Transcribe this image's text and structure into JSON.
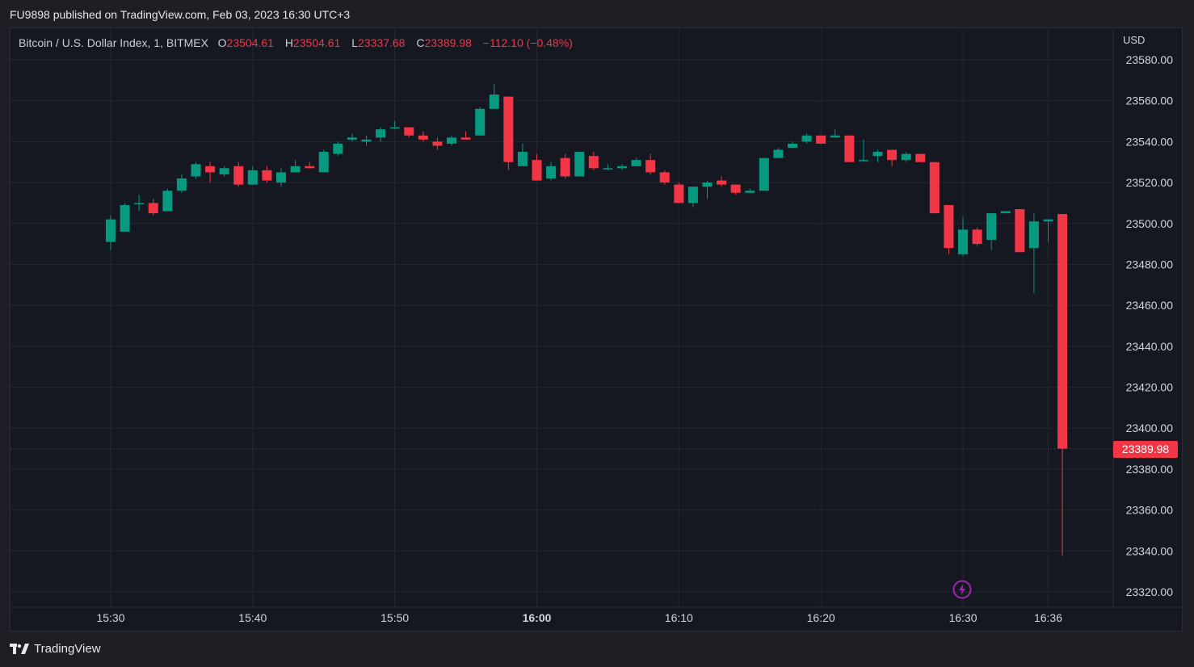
{
  "header": {
    "published_text": "FU9898 published on TradingView.com, Feb 03, 2023 16:30 UTC+3"
  },
  "legend": {
    "symbol_text": "Bitcoin / U.S. Dollar Index, 1, BITMEX",
    "o_label": "O",
    "o_value": "23504.61",
    "h_label": "H",
    "h_value": "23504.61",
    "l_label": "L",
    "l_value": "23337.68",
    "c_label": "C",
    "c_value": "23389.98",
    "change": "−112.10 (−0.48%)"
  },
  "axis": {
    "currency": "USD",
    "last_price_label": "23389.98"
  },
  "footer": {
    "brand": "TradingView"
  },
  "colors": {
    "up": "#089981",
    "down": "#f23645",
    "grid": "#242733",
    "background": "#161821"
  },
  "icons": {
    "flash": "lightning-bolt-icon",
    "logo": "tradingview-logo-icon"
  },
  "chart_data": {
    "type": "candlestick",
    "title": "Bitcoin / U.S. Dollar Index, 1, BITMEX",
    "ylabel": "USD",
    "ylim": [
      23315,
      23587
    ],
    "y_ticks": [
      "23580.00",
      "23560.00",
      "23540.00",
      "23520.00",
      "23500.00",
      "23480.00",
      "23460.00",
      "23440.00",
      "23420.00",
      "23400.00",
      "23380.00",
      "23360.00",
      "23340.00",
      "23320.00"
    ],
    "x_ticks": [
      {
        "label": "15:30",
        "minute": 923
      },
      {
        "label": "15:40",
        "minute": 933
      },
      {
        "label": "15:50",
        "minute": 943
      },
      {
        "label": "16:00",
        "minute": 953,
        "bold": true
      },
      {
        "label": "16:10",
        "minute": 963
      },
      {
        "label": "16:20",
        "minute": 973
      },
      {
        "label": "16:30",
        "minute": 983
      },
      {
        "label": "16:36",
        "minute": 989
      }
    ],
    "grid": true,
    "last_price": 23389.98,
    "candles": [
      {
        "t": "15:23",
        "o": 23491,
        "h": 23504,
        "l": 23487,
        "c": 23502
      },
      {
        "t": "15:24",
        "o": 23496,
        "h": 23510,
        "l": 23496,
        "c": 23509
      },
      {
        "t": "15:25",
        "o": 23510,
        "h": 23514,
        "l": 23506,
        "c": 23510
      },
      {
        "t": "15:26",
        "o": 23510,
        "h": 23512,
        "l": 23504,
        "c": 23505
      },
      {
        "t": "15:27",
        "o": 23506,
        "h": 23517,
        "l": 23506,
        "c": 23516
      },
      {
        "t": "15:28",
        "o": 23516,
        "h": 23524,
        "l": 23515,
        "c": 23522
      },
      {
        "t": "15:29",
        "o": 23523,
        "h": 23530,
        "l": 23522,
        "c": 23529
      },
      {
        "t": "15:30",
        "o": 23528,
        "h": 23530,
        "l": 23520,
        "c": 23525
      },
      {
        "t": "15:31",
        "o": 23524,
        "h": 23528,
        "l": 23523,
        "c": 23527
      },
      {
        "t": "15:32",
        "o": 23528,
        "h": 23530,
        "l": 23518,
        "c": 23519
      },
      {
        "t": "15:33",
        "o": 23519,
        "h": 23528,
        "l": 23519,
        "c": 23526
      },
      {
        "t": "15:34",
        "o": 23526,
        "h": 23528,
        "l": 23520,
        "c": 23521
      },
      {
        "t": "15:35",
        "o": 23520,
        "h": 23527,
        "l": 23518,
        "c": 23525
      },
      {
        "t": "15:36",
        "o": 23525,
        "h": 23531,
        "l": 23525,
        "c": 23528
      },
      {
        "t": "15:37",
        "o": 23528,
        "h": 23530,
        "l": 23527,
        "c": 23527
      },
      {
        "t": "15:38",
        "o": 23525,
        "h": 23536,
        "l": 23525,
        "c": 23535
      },
      {
        "t": "15:39",
        "o": 23534,
        "h": 23540,
        "l": 23533,
        "c": 23539
      },
      {
        "t": "15:40",
        "o": 23541,
        "h": 23544,
        "l": 23540,
        "c": 23542
      },
      {
        "t": "15:41",
        "o": 23540,
        "h": 23543,
        "l": 23538,
        "c": 23541
      },
      {
        "t": "15:42",
        "o": 23542,
        "h": 23547,
        "l": 23540,
        "c": 23546
      },
      {
        "t": "15:43",
        "o": 23547,
        "h": 23550,
        "l": 23546,
        "c": 23547
      },
      {
        "t": "15:44",
        "o": 23547,
        "h": 23547,
        "l": 23542,
        "c": 23543
      },
      {
        "t": "15:45",
        "o": 23543,
        "h": 23545,
        "l": 23540,
        "c": 23541
      },
      {
        "t": "15:46",
        "o": 23540,
        "h": 23542,
        "l": 23536,
        "c": 23538
      },
      {
        "t": "15:47",
        "o": 23539,
        "h": 23543,
        "l": 23538,
        "c": 23542
      },
      {
        "t": "15:48",
        "o": 23542,
        "h": 23545,
        "l": 23541,
        "c": 23541
      },
      {
        "t": "15:49",
        "o": 23543,
        "h": 23557,
        "l": 23543,
        "c": 23556
      },
      {
        "t": "15:50",
        "o": 23556,
        "h": 23568,
        "l": 23556,
        "c": 23563
      },
      {
        "t": "15:51",
        "o": 23562,
        "h": 23562,
        "l": 23526,
        "c": 23530
      },
      {
        "t": "15:52",
        "o": 23528,
        "h": 23539,
        "l": 23528,
        "c": 23535
      },
      {
        "t": "15:53",
        "o": 23531,
        "h": 23534,
        "l": 23521,
        "c": 23521
      },
      {
        "t": "15:54",
        "o": 23522,
        "h": 23530,
        "l": 23521,
        "c": 23528
      },
      {
        "t": "15:55",
        "o": 23532,
        "h": 23534,
        "l": 23522,
        "c": 23523
      },
      {
        "t": "15:56",
        "o": 23523,
        "h": 23535,
        "l": 23523,
        "c": 23535
      },
      {
        "t": "15:57",
        "o": 23533,
        "h": 23535,
        "l": 23526,
        "c": 23527
      },
      {
        "t": "15:58",
        "o": 23527,
        "h": 23529,
        "l": 23526,
        "c": 23527
      },
      {
        "t": "15:59",
        "o": 23527,
        "h": 23529,
        "l": 23526,
        "c": 23528
      },
      {
        "t": "16:00",
        "o": 23528,
        "h": 23532,
        "l": 23528,
        "c": 23531
      },
      {
        "t": "16:01",
        "o": 23531,
        "h": 23534,
        "l": 23524,
        "c": 23525
      },
      {
        "t": "16:02",
        "o": 23525,
        "h": 23526,
        "l": 23519,
        "c": 23520
      },
      {
        "t": "16:03",
        "o": 23519,
        "h": 23520,
        "l": 23510,
        "c": 23510
      },
      {
        "t": "16:04",
        "o": 23510,
        "h": 23518,
        "l": 23508,
        "c": 23518
      },
      {
        "t": "16:05",
        "o": 23518,
        "h": 23521,
        "l": 23512,
        "c": 23520
      },
      {
        "t": "16:06",
        "o": 23521,
        "h": 23523,
        "l": 23518,
        "c": 23519
      },
      {
        "t": "16:07",
        "o": 23519,
        "h": 23519,
        "l": 23514,
        "c": 23515
      },
      {
        "t": "16:08",
        "o": 23515,
        "h": 23517,
        "l": 23515,
        "c": 23516
      },
      {
        "t": "16:09",
        "o": 23516,
        "h": 23532,
        "l": 23516,
        "c": 23532
      },
      {
        "t": "16:10",
        "o": 23532,
        "h": 23537,
        "l": 23532,
        "c": 23536
      },
      {
        "t": "16:11",
        "o": 23537,
        "h": 23540,
        "l": 23537,
        "c": 23539
      },
      {
        "t": "16:12",
        "o": 23540,
        "h": 23544,
        "l": 23539,
        "c": 23543
      },
      {
        "t": "16:13",
        "o": 23543,
        "h": 23543,
        "l": 23539,
        "c": 23539
      },
      {
        "t": "16:14",
        "o": 23542,
        "h": 23546,
        "l": 23542,
        "c": 23543
      },
      {
        "t": "16:15",
        "o": 23543,
        "h": 23543,
        "l": 23530,
        "c": 23530
      },
      {
        "t": "16:16",
        "o": 23531,
        "h": 23541,
        "l": 23530,
        "c": 23531
      },
      {
        "t": "16:17",
        "o": 23533,
        "h": 23536,
        "l": 23530,
        "c": 23535
      },
      {
        "t": "16:18",
        "o": 23536,
        "h": 23536,
        "l": 23528,
        "c": 23531
      },
      {
        "t": "16:19",
        "o": 23531,
        "h": 23535,
        "l": 23530,
        "c": 23534
      },
      {
        "t": "16:20",
        "o": 23534,
        "h": 23534,
        "l": 23530,
        "c": 23530
      },
      {
        "t": "16:21",
        "o": 23530,
        "h": 23530,
        "l": 23505,
        "c": 23505
      },
      {
        "t": "16:22",
        "o": 23509,
        "h": 23509,
        "l": 23485,
        "c": 23488
      },
      {
        "t": "16:23",
        "o": 23485,
        "h": 23503,
        "l": 23484,
        "c": 23497
      },
      {
        "t": "16:24",
        "o": 23497,
        "h": 23498,
        "l": 23489,
        "c": 23490
      },
      {
        "t": "16:25",
        "o": 23492,
        "h": 23505,
        "l": 23487,
        "c": 23505
      },
      {
        "t": "16:26",
        "o": 23505,
        "h": 23506,
        "l": 23505,
        "c": 23506
      },
      {
        "t": "16:27",
        "o": 23507,
        "h": 23507,
        "l": 23486,
        "c": 23486
      },
      {
        "t": "16:28",
        "o": 23488,
        "h": 23505,
        "l": 23466,
        "c": 23501
      },
      {
        "t": "16:29",
        "o": 23501,
        "h": 23502,
        "l": 23491,
        "c": 23502
      },
      {
        "t": "16:30",
        "o": 23504.61,
        "h": 23504.61,
        "l": 23337.68,
        "c": 23389.98
      }
    ]
  }
}
